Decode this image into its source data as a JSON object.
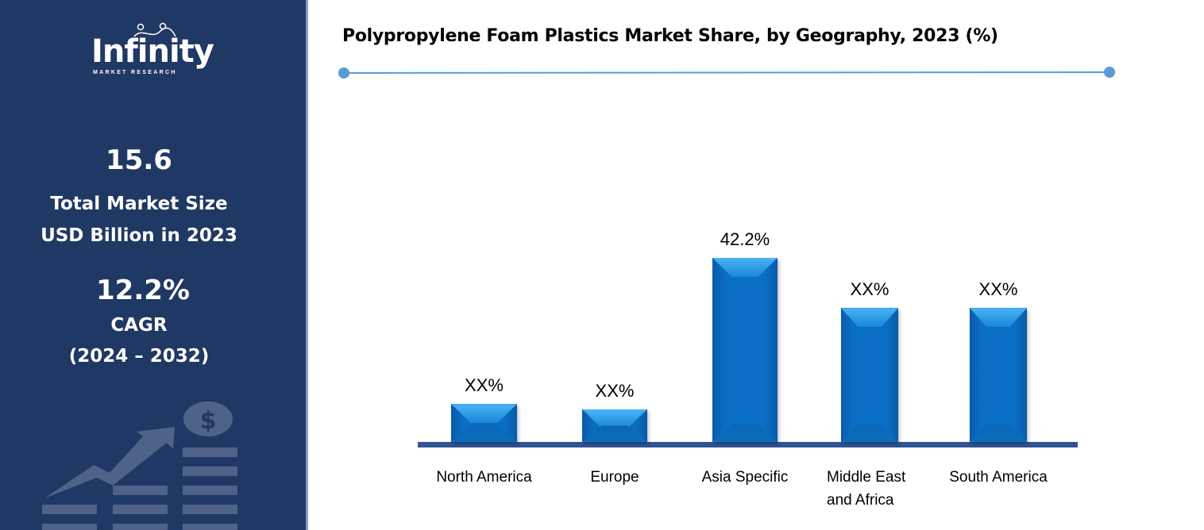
{
  "sidebar": {
    "logo": {
      "word": "Infinity",
      "sub": "MARKET RESEARCH"
    },
    "market_size_value": "15.6",
    "market_size_label_1": "Total Market Size",
    "market_size_label_2": "USD Billion in 2023",
    "cagr_value": "12.2%",
    "cagr_label": "CAGR",
    "cagr_period": "(2024 – 2032)"
  },
  "colors": {
    "sidebar": "#203864",
    "bar": "#0a6fc4",
    "baseline": "#2f5597",
    "title_rule": "#5b9bd5"
  },
  "chart_data": {
    "type": "bar",
    "title": "Polypropylene Foam Plastics Market Share, by Geography, 2023 (%)",
    "categories": [
      "North America",
      "Europe",
      "Asia Specific",
      "Middle East and Africa",
      "South America"
    ],
    "category_lines": [
      [
        "North America"
      ],
      [
        "Europe"
      ],
      [
        "Asia Specific"
      ],
      [
        "Middle East",
        "and Africa"
      ],
      [
        "South America"
      ]
    ],
    "values": [
      8.7,
      7.5,
      42.2,
      30.7,
      30.7
    ],
    "data_labels": [
      "XX%",
      "XX%",
      "42.2%",
      "XX%",
      "XX%"
    ],
    "ylim": [
      0,
      42.2
    ],
    "grid": false,
    "legend": "none"
  }
}
